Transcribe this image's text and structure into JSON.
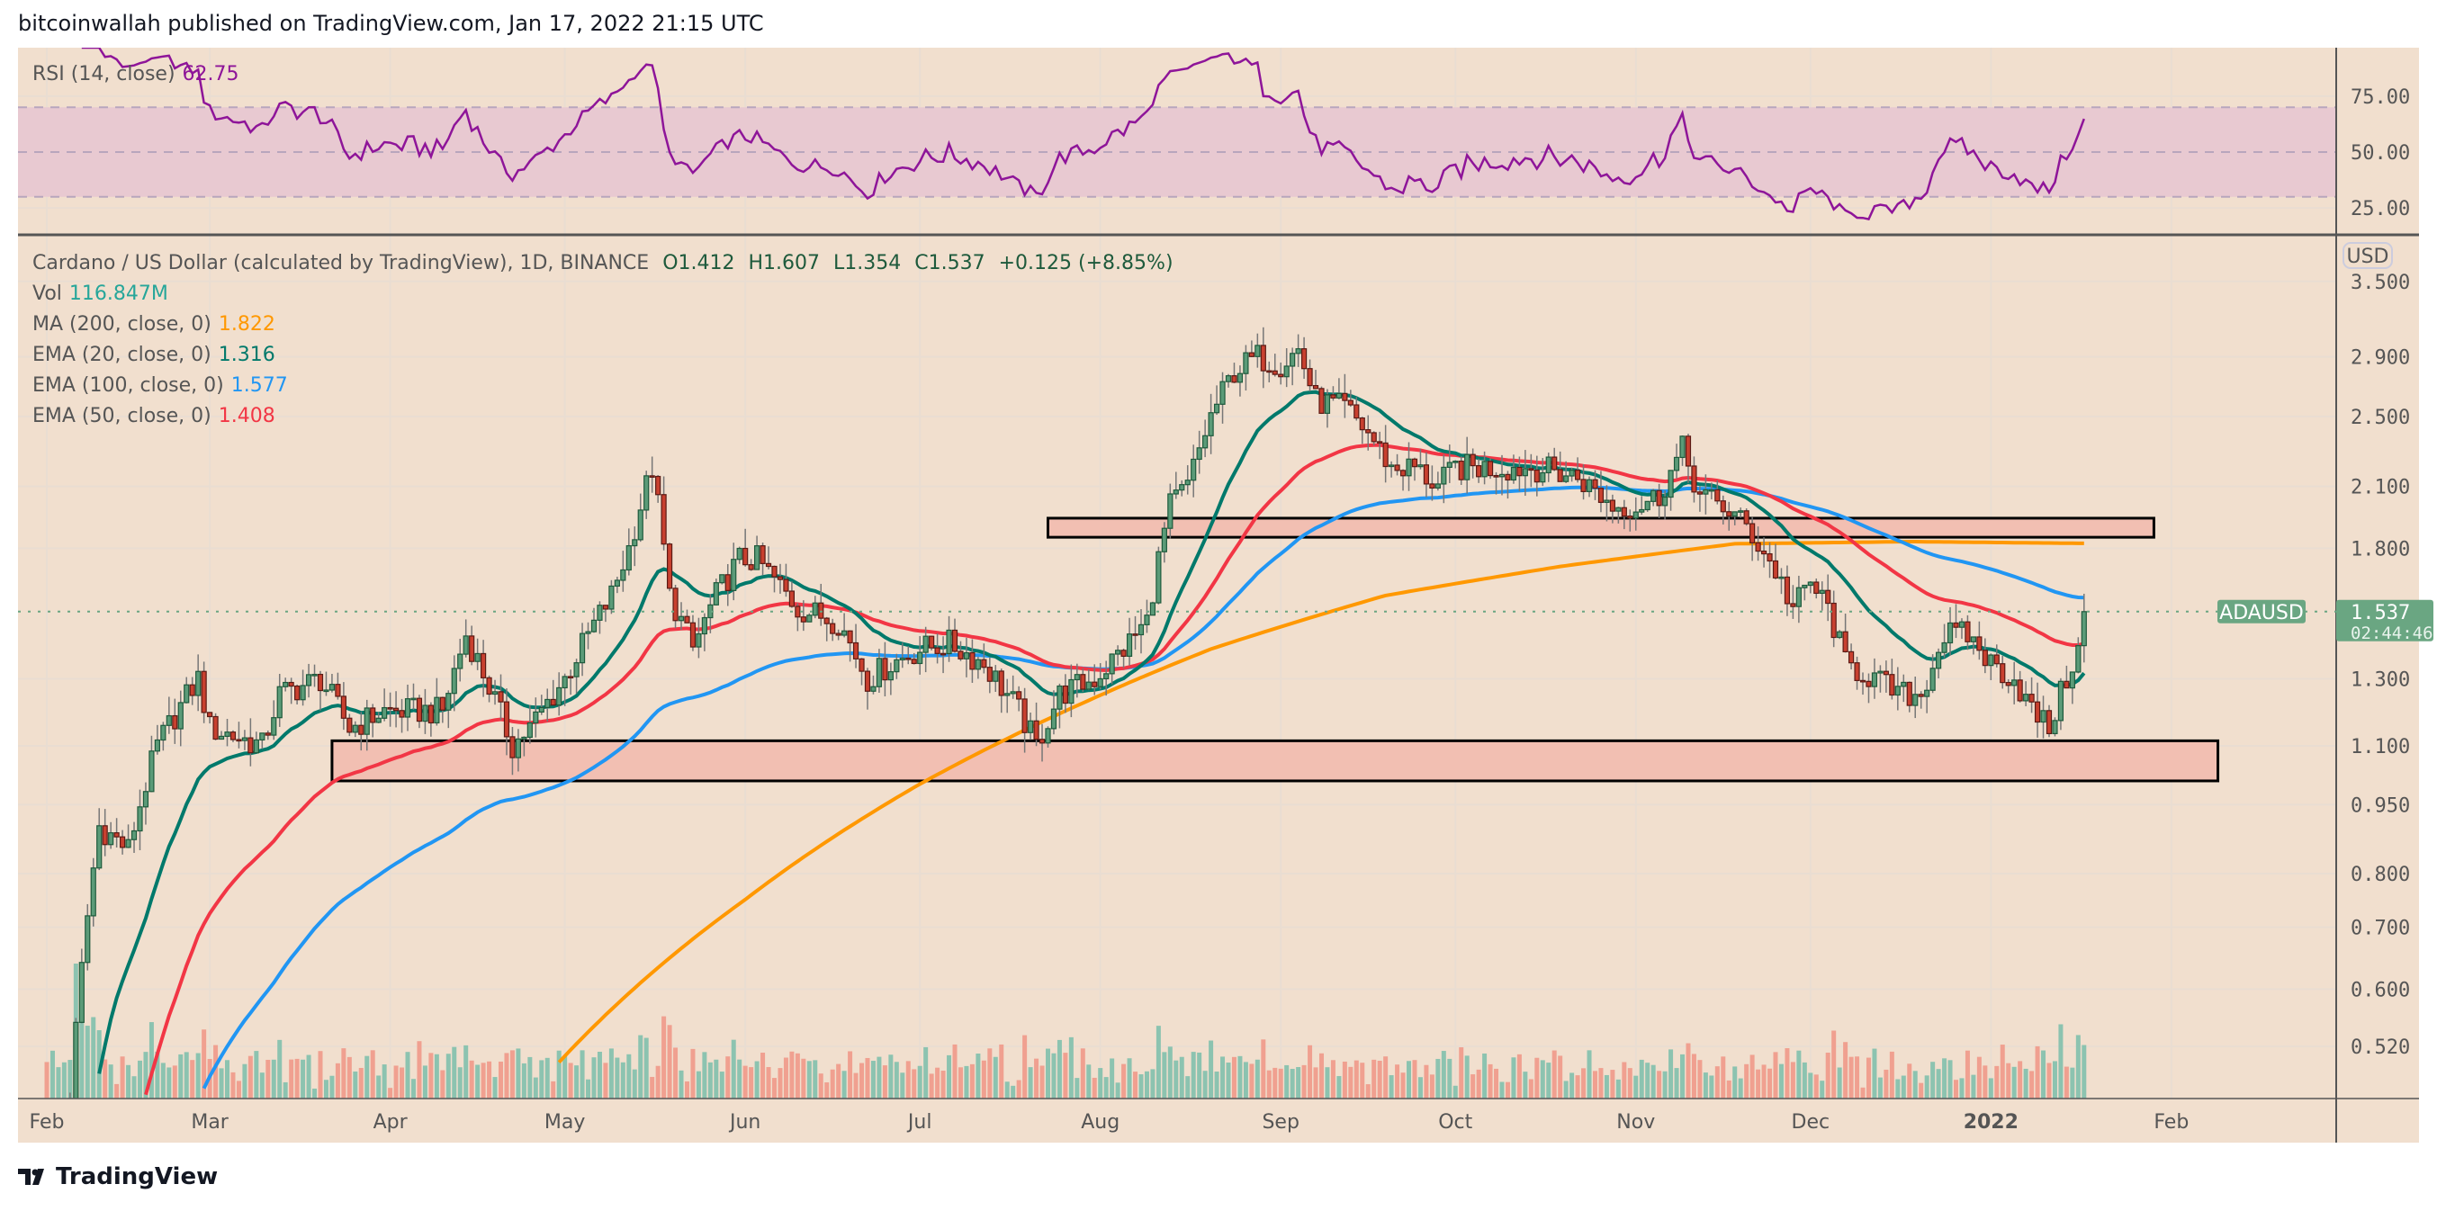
{
  "header": {
    "published": "bitcoinwallah published on TradingView.com, Jan 17, 2022 21:15 UTC"
  },
  "footer": {
    "brand": "TradingView"
  },
  "legend": {
    "rsi": {
      "label": "RSI (14, close)",
      "value": "62.75",
      "color": "#8e1599"
    },
    "symbol": "Cardano / US Dollar (calculated by TradingView), 1D, BINANCE",
    "ohlc": {
      "o": "O1.412",
      "h": "H1.607",
      "l": "L1.354",
      "c": "C1.537",
      "chg": "+0.125 (+8.85%)"
    },
    "vol": {
      "label": "Vol",
      "value": "116.847M",
      "color": "#26a69a"
    },
    "ma200": {
      "label": "MA (200, close, 0)",
      "value": "1.822",
      "color": "#ff9800"
    },
    "ema20": {
      "label": "EMA (20, close, 0)",
      "value": "1.316",
      "color": "#00796b"
    },
    "ema100": {
      "label": "EMA (100, close, 0)",
      "value": "1.577",
      "color": "#2196f3"
    },
    "ema50": {
      "label": "EMA (50, close, 0)",
      "value": "1.408",
      "color": "#f23645"
    }
  },
  "price_tag": {
    "symbol": "ADAUSD",
    "price": "1.537",
    "countdown": "02:44:46",
    "color": "#6aa682"
  },
  "currency_badge": "USD",
  "chart_data": {
    "type": "candlestick",
    "title": "Cardano / US Dollar, 1D, BINANCE",
    "x_unit": "days since 2021-02-01",
    "y_scale": "log",
    "ylim": [
      0.45,
      3.7
    ],
    "y_ticks": [
      "3.500",
      "2.900",
      "2.500",
      "2.100",
      "1.800",
      "1.300",
      "1.100",
      "0.950",
      "0.800",
      "0.700",
      "0.600",
      "0.520"
    ],
    "rsi_ticks": [
      "75.00",
      "50.00",
      "25.00"
    ],
    "x_ticks": [
      {
        "label": "Feb",
        "day": 0
      },
      {
        "label": "Mar",
        "day": 28
      },
      {
        "label": "Apr",
        "day": 59
      },
      {
        "label": "May",
        "day": 89
      },
      {
        "label": "Jun",
        "day": 120
      },
      {
        "label": "Jul",
        "day": 150
      },
      {
        "label": "Aug",
        "day": 181
      },
      {
        "label": "Sep",
        "day": 212
      },
      {
        "label": "Oct",
        "day": 242
      },
      {
        "label": "Nov",
        "day": 273
      },
      {
        "label": "Dec",
        "day": 303
      },
      {
        "label": "2022",
        "day": 334
      },
      {
        "label": "Feb",
        "day": 365
      }
    ],
    "close_anchors": [
      [
        0,
        0.4
      ],
      [
        4,
        0.45
      ],
      [
        9,
        0.9
      ],
      [
        14,
        0.85
      ],
      [
        19,
        1.1
      ],
      [
        26,
        1.3
      ],
      [
        28,
        1.15
      ],
      [
        37,
        1.1
      ],
      [
        40,
        1.25
      ],
      [
        47,
        1.3
      ],
      [
        52,
        1.15
      ],
      [
        58,
        1.2
      ],
      [
        68,
        1.2
      ],
      [
        72,
        1.45
      ],
      [
        80,
        1.1
      ],
      [
        83,
        1.15
      ],
      [
        89,
        1.3
      ],
      [
        93,
        1.45
      ],
      [
        97,
        1.6
      ],
      [
        100,
        1.8
      ],
      [
        104,
        2.2
      ],
      [
        107,
        1.6
      ],
      [
        111,
        1.4
      ],
      [
        115,
        1.6
      ],
      [
        119,
        1.75
      ],
      [
        122,
        1.75
      ],
      [
        129,
        1.55
      ],
      [
        136,
        1.5
      ],
      [
        141,
        1.3
      ],
      [
        145,
        1.35
      ],
      [
        150,
        1.4
      ],
      [
        155,
        1.42
      ],
      [
        161,
        1.35
      ],
      [
        167,
        1.2
      ],
      [
        170,
        1.1
      ],
      [
        174,
        1.25
      ],
      [
        180,
        1.3
      ],
      [
        185,
        1.4
      ],
      [
        189,
        1.5
      ],
      [
        193,
        2.0
      ],
      [
        196,
        2.1
      ],
      [
        200,
        2.5
      ],
      [
        204,
        2.8
      ],
      [
        208,
        2.9
      ],
      [
        212,
        2.85
      ],
      [
        215,
        2.95
      ],
      [
        218,
        2.6
      ],
      [
        223,
        2.55
      ],
      [
        227,
        2.4
      ],
      [
        231,
        2.2
      ],
      [
        235,
        2.2
      ],
      [
        239,
        2.1
      ],
      [
        242,
        2.2
      ],
      [
        249,
        2.2
      ],
      [
        256,
        2.2
      ],
      [
        263,
        2.15
      ],
      [
        269,
        2.0
      ],
      [
        273,
        2.0
      ],
      [
        277,
        2.05
      ],
      [
        281,
        2.3
      ],
      [
        284,
        2.05
      ],
      [
        288,
        2.0
      ],
      [
        292,
        1.9
      ],
      [
        297,
        1.7
      ],
      [
        300,
        1.55
      ],
      [
        303,
        1.65
      ],
      [
        306,
        1.55
      ],
      [
        309,
        1.35
      ],
      [
        314,
        1.3
      ],
      [
        318,
        1.25
      ],
      [
        322,
        1.25
      ],
      [
        326,
        1.45
      ],
      [
        330,
        1.45
      ],
      [
        334,
        1.35
      ],
      [
        338,
        1.3
      ],
      [
        341,
        1.2
      ],
      [
        344,
        1.15
      ],
      [
        347,
        1.3
      ],
      [
        349,
        1.412
      ]
    ],
    "last_candle": {
      "day": 350,
      "open": 1.412,
      "high": 1.607,
      "low": 1.354,
      "close": 1.537,
      "volume": 116.847
    },
    "ma200_anchors": [
      [
        88,
        0.5
      ],
      [
        120,
        0.75
      ],
      [
        150,
        1.0
      ],
      [
        175,
        1.2
      ],
      [
        200,
        1.4
      ],
      [
        230,
        1.6
      ],
      [
        260,
        1.72
      ],
      [
        290,
        1.82
      ],
      [
        320,
        1.83
      ],
      [
        350,
        1.822
      ]
    ],
    "zones": [
      {
        "name": "resistance-zone",
        "day_from": 172,
        "day_to": 362,
        "price_low": 1.85,
        "price_high": 1.94
      },
      {
        "name": "support-zone",
        "day_from": 49,
        "day_to": 373,
        "price_low": 1.008,
        "price_high": 1.114
      }
    ],
    "rsi_band": [
      30,
      70
    ],
    "colors": {
      "up": "#5b9b78",
      "up_border": "#1e5a3c",
      "down": "#c8402f",
      "down_border": "#5b1a14",
      "wick": "#777777",
      "rsi": "#8e1599",
      "zone": "#f2bfb2",
      "vol_up": "#8cc3b0",
      "vol_down": "#f0a090"
    }
  }
}
